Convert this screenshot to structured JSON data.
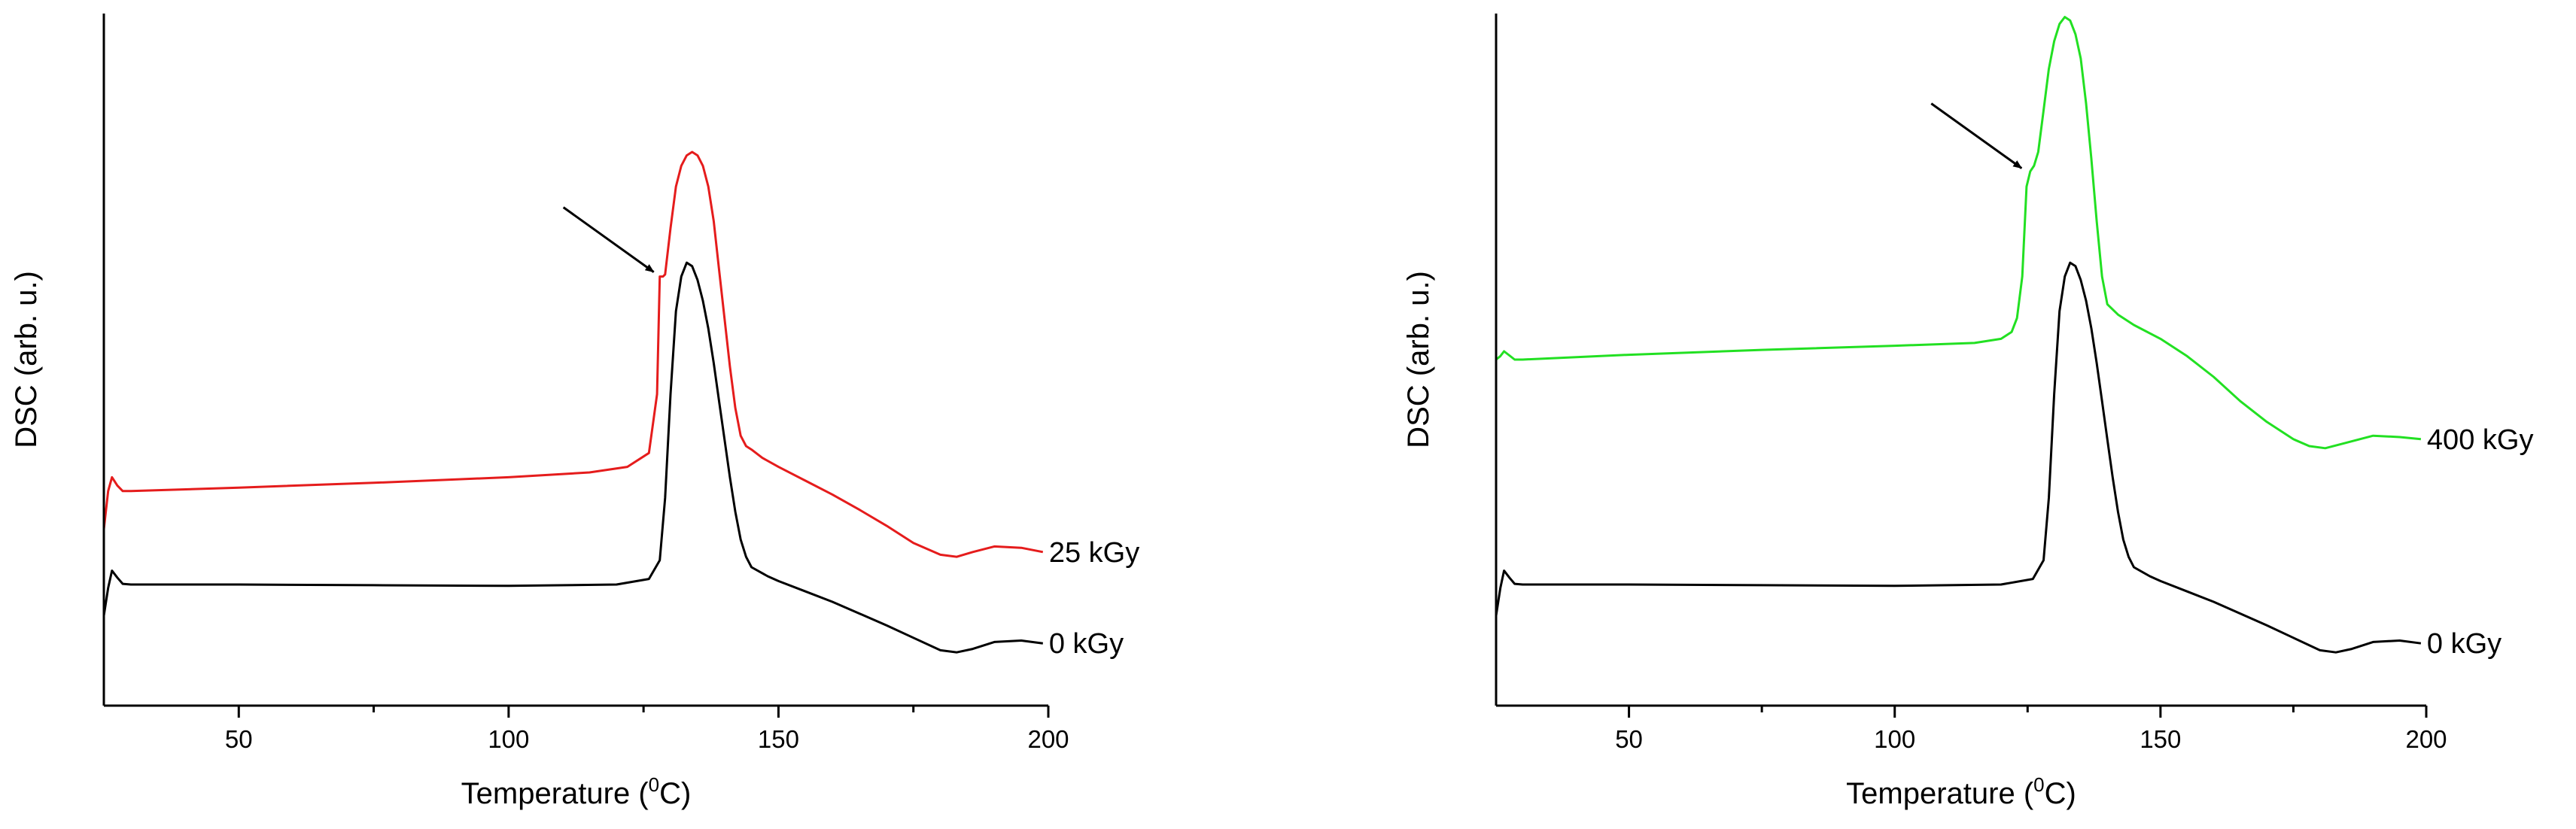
{
  "chart_data": [
    {
      "type": "line",
      "xlabel": "Temperature (",
      "xlabel_sup": "0",
      "xlabel_unit": "C)",
      "ylabel": "DSC (arb. u.)",
      "xlim": [
        25,
        200
      ],
      "ylim": [
        0,
        1
      ],
      "x_ticks": [
        50,
        100,
        150,
        200
      ],
      "grid": false,
      "annotation": {
        "type": "arrow",
        "points_to_x": 128,
        "points_to_y": 0.62
      },
      "series": [
        {
          "name": "25 kGy",
          "color": "#e51c1c",
          "x": [
            25,
            25.8,
            26.5,
            27.5,
            28.5,
            30,
            50,
            75,
            100,
            115,
            122,
            126,
            127.5,
            128,
            128.6,
            129,
            130,
            131,
            132,
            133,
            134,
            135,
            136,
            137,
            138,
            139,
            140,
            141,
            142,
            143,
            144,
            145,
            147,
            150,
            155,
            160,
            165,
            170,
            175,
            180,
            183,
            186,
            190,
            195,
            199
          ],
          "values": [
            0.255,
            0.31,
            0.33,
            0.318,
            0.31,
            0.31,
            0.315,
            0.322,
            0.33,
            0.337,
            0.345,
            0.365,
            0.45,
            0.62,
            0.62,
            0.623,
            0.69,
            0.75,
            0.78,
            0.795,
            0.8,
            0.795,
            0.78,
            0.75,
            0.7,
            0.63,
            0.56,
            0.49,
            0.43,
            0.39,
            0.375,
            0.37,
            0.358,
            0.345,
            0.325,
            0.305,
            0.283,
            0.26,
            0.235,
            0.218,
            0.215,
            0.222,
            0.23,
            0.228,
            0.222
          ]
        },
        {
          "name": "0 kGy",
          "color": "#000000",
          "x": [
            25,
            25.8,
            26.5,
            27.5,
            28.5,
            30,
            50,
            75,
            100,
            120,
            126,
            128,
            129,
            130,
            131,
            132,
            133,
            134,
            135,
            136,
            137,
            138,
            139,
            140,
            141,
            142,
            143,
            144,
            145,
            148,
            150,
            155,
            160,
            165,
            170,
            175,
            180,
            183,
            186,
            190,
            195,
            199
          ],
          "values": [
            0.13,
            0.17,
            0.195,
            0.185,
            0.176,
            0.175,
            0.175,
            0.174,
            0.173,
            0.175,
            0.183,
            0.21,
            0.3,
            0.45,
            0.57,
            0.62,
            0.64,
            0.635,
            0.615,
            0.585,
            0.545,
            0.495,
            0.44,
            0.385,
            0.33,
            0.28,
            0.24,
            0.215,
            0.2,
            0.187,
            0.18,
            0.165,
            0.15,
            0.133,
            0.116,
            0.098,
            0.08,
            0.077,
            0.082,
            0.092,
            0.094,
            0.09
          ]
        }
      ]
    },
    {
      "type": "line",
      "xlabel": "Temperature (",
      "xlabel_sup": "0",
      "xlabel_unit": "C)",
      "ylabel": "DSC (arb. u.)",
      "xlim": [
        25,
        200
      ],
      "ylim": [
        0,
        1
      ],
      "x_ticks": [
        50,
        100,
        150,
        200
      ],
      "grid": false,
      "annotation": {
        "type": "arrow",
        "points_to_x": 125,
        "points_to_y": 0.77
      },
      "series": [
        {
          "name": "400 kGy",
          "color": "#22e022",
          "x": [
            25,
            25.8,
            26.5,
            27.5,
            28.5,
            30,
            50,
            75,
            100,
            115,
            120,
            122,
            123,
            124,
            124.8,
            125.5,
            126.2,
            127,
            128,
            129,
            130,
            131,
            132,
            133,
            134,
            135,
            136,
            137,
            138,
            139,
            140,
            142,
            145,
            150,
            155,
            160,
            165,
            170,
            175,
            178,
            181,
            185,
            190,
            195,
            199
          ],
          "values": [
            0.5,
            0.505,
            0.512,
            0.506,
            0.5,
            0.5,
            0.507,
            0.514,
            0.52,
            0.524,
            0.53,
            0.54,
            0.56,
            0.62,
            0.75,
            0.772,
            0.78,
            0.8,
            0.86,
            0.92,
            0.96,
            0.985,
            0.995,
            0.99,
            0.97,
            0.935,
            0.87,
            0.79,
            0.7,
            0.62,
            0.58,
            0.565,
            0.55,
            0.53,
            0.505,
            0.475,
            0.44,
            0.41,
            0.385,
            0.375,
            0.372,
            0.38,
            0.39,
            0.388,
            0.385
          ]
        },
        {
          "name": "0 kGy",
          "color": "#000000",
          "x": [
            25,
            25.8,
            26.5,
            27.5,
            28.5,
            30,
            50,
            75,
            100,
            120,
            126,
            128,
            129,
            130,
            131,
            132,
            133,
            134,
            135,
            136,
            137,
            138,
            139,
            140,
            141,
            142,
            143,
            144,
            145,
            148,
            150,
            155,
            160,
            165,
            170,
            175,
            180,
            183,
            186,
            190,
            195,
            199
          ],
          "values": [
            0.13,
            0.17,
            0.195,
            0.185,
            0.176,
            0.175,
            0.175,
            0.174,
            0.173,
            0.175,
            0.183,
            0.21,
            0.3,
            0.45,
            0.57,
            0.62,
            0.64,
            0.635,
            0.615,
            0.585,
            0.545,
            0.495,
            0.44,
            0.385,
            0.33,
            0.28,
            0.24,
            0.215,
            0.2,
            0.187,
            0.18,
            0.165,
            0.15,
            0.133,
            0.116,
            0.098,
            0.08,
            0.077,
            0.082,
            0.092,
            0.094,
            0.09
          ]
        }
      ]
    }
  ]
}
